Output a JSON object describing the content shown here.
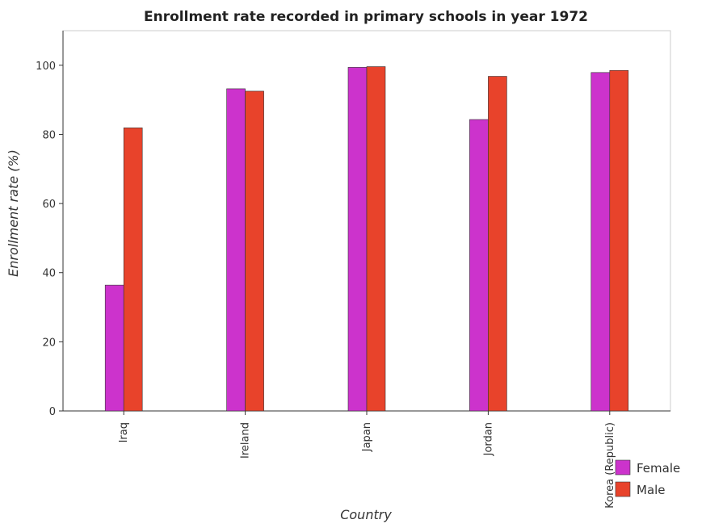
{
  "chart_data": {
    "type": "bar",
    "title": "Enrollment rate recorded in primary schools in year 1972",
    "xlabel": "Country",
    "ylabel": "Enrollment rate (%)",
    "categories": [
      "Iraq",
      "Ireland",
      "Japan",
      "Jordan",
      "Korea (Republic)"
    ],
    "series": [
      {
        "name": "Female",
        "color": "#cc33cc",
        "values": [
          36.4,
          93.2,
          99.4,
          84.3,
          97.9
        ]
      },
      {
        "name": "Male",
        "color": "#e8432b",
        "values": [
          81.9,
          92.5,
          99.6,
          96.8,
          98.5
        ]
      }
    ],
    "ylim": [
      0,
      110
    ],
    "yticks": [
      0,
      20,
      40,
      60,
      80,
      100
    ],
    "grid": false,
    "legend_position": "bottom-right"
  }
}
